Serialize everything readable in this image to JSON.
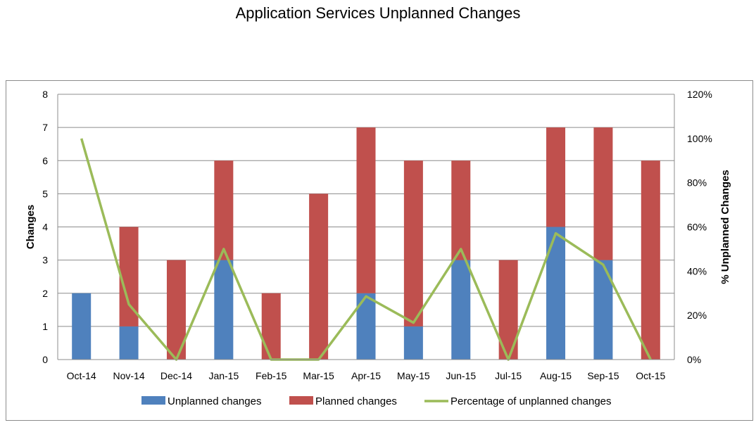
{
  "chart_data": {
    "type": "bar",
    "title": "Application Services Unplanned Changes",
    "categories": [
      "Oct-14",
      "Nov-14",
      "Dec-14",
      "Jan-15",
      "Feb-15",
      "Mar-15",
      "Apr-15",
      "May-15",
      "Jun-15",
      "Jul-15",
      "Aug-15",
      "Sep-15",
      "Oct-15"
    ],
    "stacked": true,
    "series": [
      {
        "name": "Unplanned changes",
        "type": "bar",
        "axis": "left",
        "color": "#4f81bd",
        "values": [
          2,
          1,
          0,
          3,
          0,
          0,
          2,
          1,
          3,
          0,
          4,
          3,
          0
        ]
      },
      {
        "name": "Planned changes",
        "type": "bar",
        "axis": "left",
        "color": "#c0504d",
        "values": [
          0,
          3,
          3,
          3,
          2,
          5,
          5,
          5,
          3,
          3,
          3,
          4,
          6
        ]
      },
      {
        "name": "Percentage of unplanned changes",
        "type": "line",
        "axis": "right",
        "color": "#9bbb59",
        "values": [
          100,
          25,
          0,
          50,
          0,
          0,
          28.6,
          16.7,
          50,
          0,
          57.1,
          42.9,
          0
        ]
      }
    ],
    "ylabel": "Changes",
    "ylim": [
      0,
      8
    ],
    "yticks": [
      "0",
      "1",
      "2",
      "3",
      "4",
      "5",
      "6",
      "7",
      "8"
    ],
    "y2label": "% Unplanned Changes",
    "y2lim": [
      0,
      120
    ],
    "y2ticks": [
      "0%",
      "20%",
      "40%",
      "60%",
      "80%",
      "100%",
      "120%"
    ],
    "grid": true,
    "legend": "bottom"
  }
}
